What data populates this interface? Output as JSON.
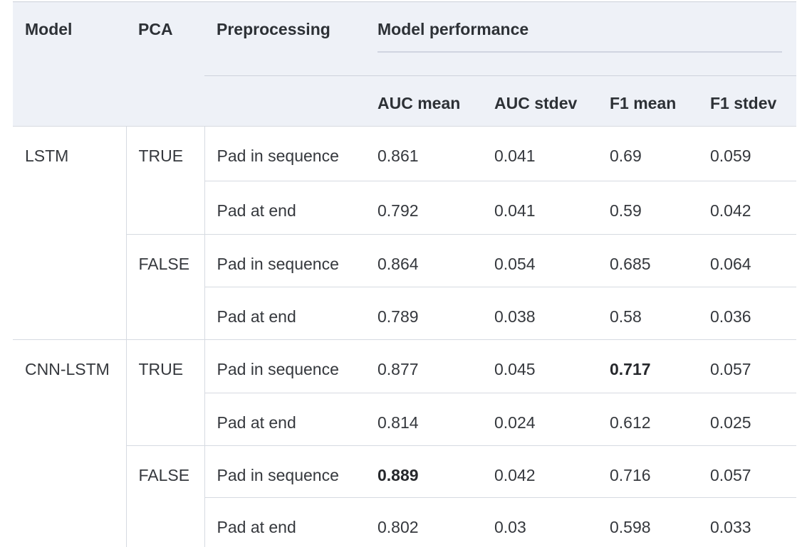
{
  "table": {
    "headers": {
      "model": "Model",
      "pca": "PCA",
      "preprocessing": "Preprocessing",
      "model_performance": "Model performance",
      "auc_mean": "AUC mean",
      "auc_stdev": "AUC stdev",
      "f1_mean": "F1 mean",
      "f1_stdev": "F1 stdev"
    },
    "rows": [
      {
        "model": "LSTM",
        "pca": "TRUE",
        "preprocessing": "Pad in sequence",
        "auc_mean": "0.861",
        "auc_stdev": "0.041",
        "f1_mean": "0.69",
        "f1_stdev": "0.059"
      },
      {
        "preprocessing": "Pad at end",
        "auc_mean": "0.792",
        "auc_stdev": "0.041",
        "f1_mean": "0.59",
        "f1_stdev": "0.042"
      },
      {
        "pca": "FALSE",
        "preprocessing": "Pad in sequence",
        "auc_mean": "0.864",
        "auc_stdev": "0.054",
        "f1_mean": "0.685",
        "f1_stdev": "0.064"
      },
      {
        "preprocessing": "Pad at end",
        "auc_mean": "0.789",
        "auc_stdev": "0.038",
        "f1_mean": "0.58",
        "f1_stdev": "0.036"
      },
      {
        "model": "CNN-LSTM",
        "pca": "TRUE",
        "preprocessing": "Pad in sequence",
        "auc_mean": "0.877",
        "auc_stdev": "0.045",
        "f1_mean": "0.717",
        "f1_stdev": "0.057",
        "f1_mean_bold": true
      },
      {
        "preprocessing": "Pad at end",
        "auc_mean": "0.814",
        "auc_stdev": "0.024",
        "f1_mean": "0.612",
        "f1_stdev": "0.025"
      },
      {
        "pca": "FALSE",
        "preprocessing": "Pad in sequence",
        "auc_mean": "0.889",
        "auc_stdev": "0.042",
        "f1_mean": "0.716",
        "f1_stdev": "0.057",
        "auc_mean_bold": true
      },
      {
        "preprocessing": "Pad at end",
        "auc_mean": "0.802",
        "auc_stdev": "0.03",
        "f1_mean": "0.598",
        "f1_stdev": "0.033"
      }
    ]
  },
  "colors": {
    "header_background": "#eef1f7",
    "border": "#d6dae1",
    "header_rule": "#d0d4e0",
    "text": "#35383d",
    "bold_text": "#26282c"
  },
  "chart_data": {
    "type": "table",
    "title": "Model performance",
    "columns": [
      "Model",
      "PCA",
      "Preprocessing",
      "AUC mean",
      "AUC stdev",
      "F1 mean",
      "F1 stdev"
    ],
    "rows": [
      [
        "LSTM",
        "TRUE",
        "Pad in sequence",
        0.861,
        0.041,
        0.69,
        0.059
      ],
      [
        "LSTM",
        "TRUE",
        "Pad at end",
        0.792,
        0.041,
        0.59,
        0.042
      ],
      [
        "LSTM",
        "FALSE",
        "Pad in sequence",
        0.864,
        0.054,
        0.685,
        0.064
      ],
      [
        "LSTM",
        "FALSE",
        "Pad at end",
        0.789,
        0.038,
        0.58,
        0.036
      ],
      [
        "CNN-LSTM",
        "TRUE",
        "Pad in sequence",
        0.877,
        0.045,
        0.717,
        0.057
      ],
      [
        "CNN-LSTM",
        "TRUE",
        "Pad at end",
        0.814,
        0.024,
        0.612,
        0.025
      ],
      [
        "CNN-LSTM",
        "FALSE",
        "Pad in sequence",
        0.889,
        0.042,
        0.716,
        0.057
      ],
      [
        "CNN-LSTM",
        "FALSE",
        "Pad at end",
        0.802,
        0.03,
        0.598,
        0.033
      ]
    ],
    "bold_values": [
      "F1 mean 0.717 (CNN-LSTM TRUE Pad in sequence)",
      "AUC mean 0.889 (CNN-LSTM FALSE Pad in sequence)"
    ]
  }
}
